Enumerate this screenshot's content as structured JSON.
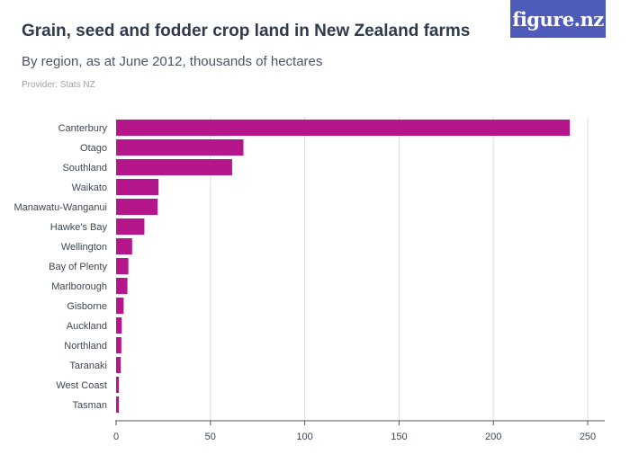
{
  "header": {
    "title": "Grain, seed and fodder crop land in New Zealand farms",
    "subtitle": "By region, as at June 2012, thousands of hectares",
    "provider": "Provider: Stats NZ",
    "logo": "figure.nz"
  },
  "colors": {
    "bar": "#b5168c",
    "grid": "#dcdcdc",
    "axis": "#555555",
    "logo_bg": "#4f5bb8"
  },
  "chart_data": {
    "type": "bar",
    "orientation": "horizontal",
    "categories": [
      "Canterbury",
      "Otago",
      "Southland",
      "Waikato",
      "Manawatu-Wanganui",
      "Hawke's Bay",
      "Wellington",
      "Bay of Plenty",
      "Marlborough",
      "Gisborne",
      "Auckland",
      "Northland",
      "Taranaki",
      "West Coast",
      "Tasman"
    ],
    "values": [
      240.5,
      67.5,
      61.5,
      22.5,
      22,
      15,
      8.5,
      6.5,
      6,
      4,
      3,
      2.8,
      2.5,
      1.5,
      1.5
    ],
    "xlim": [
      0,
      250
    ],
    "xticks": [
      0,
      50,
      100,
      150,
      200,
      250
    ],
    "grid": true
  }
}
